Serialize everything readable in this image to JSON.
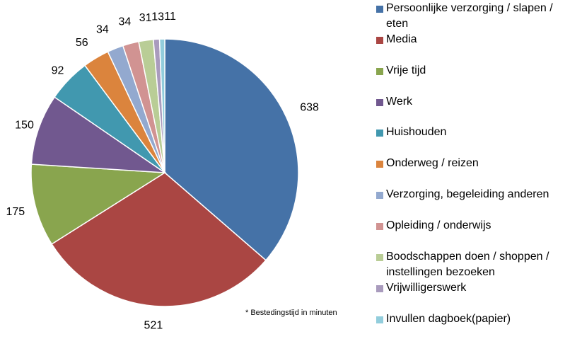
{
  "chart_data": {
    "type": "pie",
    "categories": [
      "Persoonlijke verzorging / slapen / eten",
      "Media",
      "Vrije tijd",
      "Werk",
      "Huishouden",
      "Onderweg / reizen",
      "Verzorging, begeleiding anderen",
      "Opleiding / onderwijs",
      "Boodschappen doen / shoppen / instellingen bezoeken",
      "Vrijwilligerswerk",
      "Invullen dagboek(papier)"
    ],
    "legend_lines": [
      [
        "Persoonlijke verzorging / slapen /",
        "eten"
      ],
      [
        "Media"
      ],
      [
        "Vrije tijd"
      ],
      [
        "Werk"
      ],
      [
        "Huishouden"
      ],
      [
        "Onderweg / reizen"
      ],
      [
        "Verzorging, begeleiding anderen"
      ],
      [
        "Opleiding / onderwijs"
      ],
      [
        "Boodschappen doen / shoppen /",
        "instellingen bezoeken"
      ],
      [
        "Vrijwilligerswerk"
      ],
      [
        "Invullen dagboek(papier)"
      ]
    ],
    "values": [
      638,
      521,
      175,
      150,
      92,
      56,
      34,
      34,
      31,
      13,
      11
    ],
    "data_labels": [
      "638",
      "521",
      "175",
      "150",
      "92",
      "56",
      "34",
      "34",
      "31",
      "13",
      "11"
    ],
    "colors": [
      "#4572A7",
      "#AA4643",
      "#89A54E",
      "#71588F",
      "#4198AF",
      "#DB843D",
      "#93A9CF",
      "#D19392",
      "#B9CD96",
      "#A99BBD",
      "#92CDDC"
    ],
    "legend_position": "right",
    "footnote": "* Bestedingstijd in minuten"
  }
}
